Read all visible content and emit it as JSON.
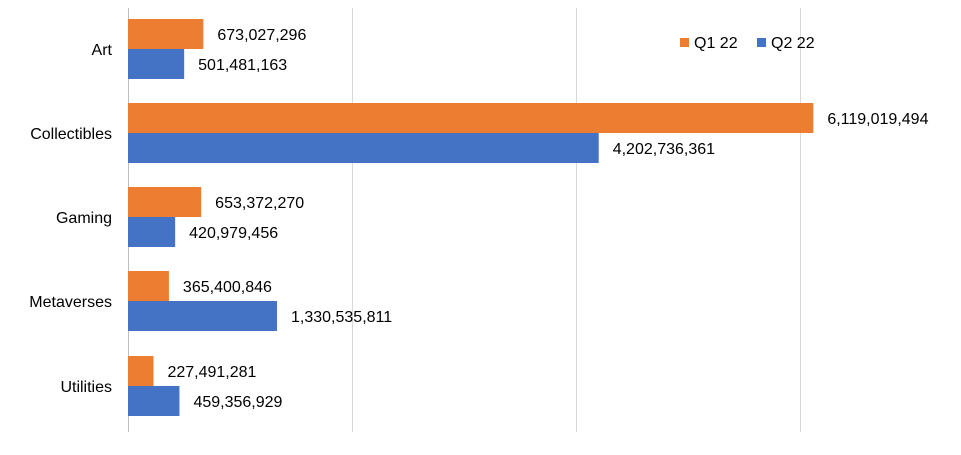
{
  "chart_data": {
    "type": "bar",
    "orientation": "horizontal",
    "categories": [
      "Art",
      "Collectibles",
      "Gaming",
      "Metaverses",
      "Utilities"
    ],
    "series": [
      {
        "name": "Q1 22",
        "color": "#ED7D31",
        "values": [
          673027296,
          6119019494,
          653372270,
          365400846,
          227491281
        ],
        "labels": [
          "673,027,296",
          "6,119,019,494",
          "653,372,270",
          "365,400,846",
          "227,491,281"
        ]
      },
      {
        "name": "Q2 22",
        "color": "#4472C4",
        "values": [
          501481163,
          4202736361,
          420979456,
          1330535811,
          459356929
        ],
        "labels": [
          "501,481,163",
          "4,202,736,361",
          "420,979,456",
          "1,330,535,811",
          "459,356,929"
        ]
      }
    ],
    "xlim": [
      0,
      7000000000
    ],
    "gridlines": [
      0,
      2000000000,
      4000000000,
      6000000000
    ],
    "grid": true,
    "legend_position": "top-right",
    "title": "",
    "xlabel": "",
    "ylabel": ""
  }
}
